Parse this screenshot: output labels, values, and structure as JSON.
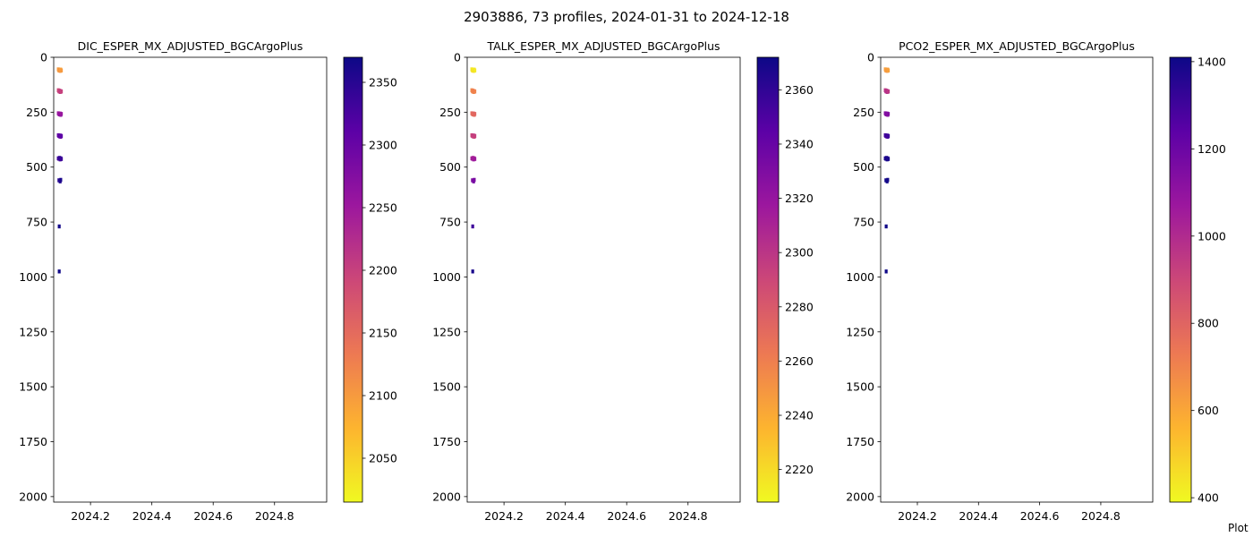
{
  "figure": {
    "title": "2903886, 73 profiles, 2024-01-31 to 2024-12-18",
    "footer": "Plot"
  },
  "colormap": {
    "name": "plasma",
    "stops": [
      "#0d0887",
      "#5c01a6",
      "#9c179e",
      "#cc4778",
      "#ed7953",
      "#fdb42f",
      "#f0f921"
    ]
  },
  "chart_data": [
    {
      "type": "scatter",
      "title": "DIC_ESPER_MX_ADJUSTED_BGCArgoPlus",
      "xlabel": "",
      "ylabel": "",
      "xlim": [
        2024.08,
        2024.97
      ],
      "ylim": [
        2025,
        0
      ],
      "y_inverted": true,
      "xticks": [
        "2024.2",
        "2024.4",
        "2024.6",
        "2024.8"
      ],
      "yticks": [
        "0",
        "250",
        "500",
        "750",
        "1000",
        "1250",
        "1500",
        "1750",
        "2000"
      ],
      "colorbar": {
        "range": [
          2015,
          2370
        ],
        "ticks": [
          "2050",
          "2100",
          "2150",
          "2200",
          "2250",
          "2300",
          "2350"
        ]
      },
      "points": [
        {
          "x": 2024.095,
          "y": 55,
          "c": 2100
        },
        {
          "x": 2024.097,
          "y": 60,
          "c": 2095
        },
        {
          "x": 2024.099,
          "y": 58,
          "c": 2110
        },
        {
          "x": 2024.101,
          "y": 62,
          "c": 2105
        },
        {
          "x": 2024.103,
          "y": 56,
          "c": 2090
        },
        {
          "x": 2024.105,
          "y": 60,
          "c": 2100
        },
        {
          "x": 2024.095,
          "y": 150,
          "c": 2190
        },
        {
          "x": 2024.097,
          "y": 155,
          "c": 2200
        },
        {
          "x": 2024.099,
          "y": 152,
          "c": 2195
        },
        {
          "x": 2024.101,
          "y": 158,
          "c": 2205
        },
        {
          "x": 2024.103,
          "y": 154,
          "c": 2210
        },
        {
          "x": 2024.105,
          "y": 156,
          "c": 2200
        },
        {
          "x": 2024.095,
          "y": 255,
          "c": 2250
        },
        {
          "x": 2024.097,
          "y": 258,
          "c": 2255
        },
        {
          "x": 2024.099,
          "y": 260,
          "c": 2260
        },
        {
          "x": 2024.101,
          "y": 256,
          "c": 2250
        },
        {
          "x": 2024.103,
          "y": 262,
          "c": 2265
        },
        {
          "x": 2024.105,
          "y": 258,
          "c": 2255
        },
        {
          "x": 2024.095,
          "y": 355,
          "c": 2300
        },
        {
          "x": 2024.097,
          "y": 358,
          "c": 2310
        },
        {
          "x": 2024.099,
          "y": 360,
          "c": 2305
        },
        {
          "x": 2024.101,
          "y": 356,
          "c": 2315
        },
        {
          "x": 2024.103,
          "y": 362,
          "c": 2300
        },
        {
          "x": 2024.105,
          "y": 358,
          "c": 2310
        },
        {
          "x": 2024.095,
          "y": 460,
          "c": 2330
        },
        {
          "x": 2024.097,
          "y": 462,
          "c": 2335
        },
        {
          "x": 2024.099,
          "y": 458,
          "c": 2340
        },
        {
          "x": 2024.101,
          "y": 465,
          "c": 2330
        },
        {
          "x": 2024.103,
          "y": 460,
          "c": 2345
        },
        {
          "x": 2024.105,
          "y": 463,
          "c": 2335
        },
        {
          "x": 2024.097,
          "y": 560,
          "c": 2350
        },
        {
          "x": 2024.101,
          "y": 565,
          "c": 2355
        },
        {
          "x": 2024.103,
          "y": 558,
          "c": 2360
        },
        {
          "x": 2024.098,
          "y": 770,
          "c": 2365
        },
        {
          "x": 2024.098,
          "y": 975,
          "c": 2368
        }
      ]
    },
    {
      "type": "scatter",
      "title": "TALK_ESPER_MX_ADJUSTED_BGCArgoPlus",
      "xlabel": "",
      "ylabel": "",
      "xlim": [
        2024.08,
        2024.97
      ],
      "ylim": [
        2025,
        0
      ],
      "y_inverted": true,
      "xticks": [
        "2024.2",
        "2024.4",
        "2024.6",
        "2024.8"
      ],
      "yticks": [
        "0",
        "250",
        "500",
        "750",
        "1000",
        "1250",
        "1500",
        "1750",
        "2000"
      ],
      "colorbar": {
        "range": [
          2208,
          2372
        ],
        "ticks": [
          "2220",
          "2240",
          "2260",
          "2280",
          "2300",
          "2320",
          "2340",
          "2360"
        ]
      },
      "points": [
        {
          "x": 2024.095,
          "y": 55,
          "c": 2215
        },
        {
          "x": 2024.097,
          "y": 60,
          "c": 2218
        },
        {
          "x": 2024.099,
          "y": 58,
          "c": 2212
        },
        {
          "x": 2024.101,
          "y": 62,
          "c": 2220
        },
        {
          "x": 2024.103,
          "y": 56,
          "c": 2216
        },
        {
          "x": 2024.105,
          "y": 60,
          "c": 2214
        },
        {
          "x": 2024.095,
          "y": 150,
          "c": 2255
        },
        {
          "x": 2024.097,
          "y": 155,
          "c": 2258
        },
        {
          "x": 2024.099,
          "y": 152,
          "c": 2260
        },
        {
          "x": 2024.101,
          "y": 158,
          "c": 2256
        },
        {
          "x": 2024.103,
          "y": 154,
          "c": 2262
        },
        {
          "x": 2024.105,
          "y": 156,
          "c": 2258
        },
        {
          "x": 2024.095,
          "y": 255,
          "c": 2270
        },
        {
          "x": 2024.097,
          "y": 258,
          "c": 2272
        },
        {
          "x": 2024.099,
          "y": 260,
          "c": 2268
        },
        {
          "x": 2024.101,
          "y": 256,
          "c": 2275
        },
        {
          "x": 2024.103,
          "y": 262,
          "c": 2270
        },
        {
          "x": 2024.105,
          "y": 258,
          "c": 2273
        },
        {
          "x": 2024.095,
          "y": 355,
          "c": 2290
        },
        {
          "x": 2024.097,
          "y": 358,
          "c": 2295
        },
        {
          "x": 2024.099,
          "y": 360,
          "c": 2292
        },
        {
          "x": 2024.101,
          "y": 356,
          "c": 2298
        },
        {
          "x": 2024.103,
          "y": 362,
          "c": 2290
        },
        {
          "x": 2024.105,
          "y": 358,
          "c": 2294
        },
        {
          "x": 2024.095,
          "y": 460,
          "c": 2310
        },
        {
          "x": 2024.097,
          "y": 462,
          "c": 2315
        },
        {
          "x": 2024.099,
          "y": 458,
          "c": 2312
        },
        {
          "x": 2024.101,
          "y": 465,
          "c": 2318
        },
        {
          "x": 2024.103,
          "y": 460,
          "c": 2310
        },
        {
          "x": 2024.105,
          "y": 463,
          "c": 2316
        },
        {
          "x": 2024.097,
          "y": 560,
          "c": 2330
        },
        {
          "x": 2024.101,
          "y": 565,
          "c": 2335
        },
        {
          "x": 2024.103,
          "y": 558,
          "c": 2332
        },
        {
          "x": 2024.098,
          "y": 770,
          "c": 2355
        },
        {
          "x": 2024.098,
          "y": 975,
          "c": 2368
        }
      ]
    },
    {
      "type": "scatter",
      "title": "PCO2_ESPER_MX_ADJUSTED_BGCArgoPlus",
      "xlabel": "",
      "ylabel": "",
      "xlim": [
        2024.08,
        2024.97
      ],
      "ylim": [
        2025,
        0
      ],
      "y_inverted": true,
      "xticks": [
        "2024.2",
        "2024.4",
        "2024.6",
        "2024.8"
      ],
      "yticks": [
        "0",
        "250",
        "500",
        "750",
        "1000",
        "1250",
        "1500",
        "1750",
        "2000"
      ],
      "colorbar": {
        "range": [
          390,
          1410
        ],
        "ticks": [
          "400",
          "600",
          "800",
          "1000",
          "1200",
          "1400"
        ]
      },
      "points": [
        {
          "x": 2024.095,
          "y": 55,
          "c": 620
        },
        {
          "x": 2024.097,
          "y": 60,
          "c": 640
        },
        {
          "x": 2024.099,
          "y": 58,
          "c": 610
        },
        {
          "x": 2024.101,
          "y": 62,
          "c": 650
        },
        {
          "x": 2024.103,
          "y": 56,
          "c": 630
        },
        {
          "x": 2024.105,
          "y": 60,
          "c": 615
        },
        {
          "x": 2024.095,
          "y": 150,
          "c": 950
        },
        {
          "x": 2024.097,
          "y": 155,
          "c": 980
        },
        {
          "x": 2024.099,
          "y": 152,
          "c": 960
        },
        {
          "x": 2024.101,
          "y": 158,
          "c": 990
        },
        {
          "x": 2024.103,
          "y": 154,
          "c": 970
        },
        {
          "x": 2024.105,
          "y": 156,
          "c": 955
        },
        {
          "x": 2024.095,
          "y": 255,
          "c": 1120
        },
        {
          "x": 2024.097,
          "y": 258,
          "c": 1140
        },
        {
          "x": 2024.099,
          "y": 260,
          "c": 1130
        },
        {
          "x": 2024.101,
          "y": 256,
          "c": 1150
        },
        {
          "x": 2024.103,
          "y": 262,
          "c": 1125
        },
        {
          "x": 2024.105,
          "y": 258,
          "c": 1145
        },
        {
          "x": 2024.095,
          "y": 355,
          "c": 1280
        },
        {
          "x": 2024.097,
          "y": 358,
          "c": 1300
        },
        {
          "x": 2024.099,
          "y": 360,
          "c": 1290
        },
        {
          "x": 2024.101,
          "y": 356,
          "c": 1310
        },
        {
          "x": 2024.103,
          "y": 362,
          "c": 1285
        },
        {
          "x": 2024.105,
          "y": 358,
          "c": 1305
        },
        {
          "x": 2024.095,
          "y": 460,
          "c": 1370
        },
        {
          "x": 2024.097,
          "y": 462,
          "c": 1380
        },
        {
          "x": 2024.099,
          "y": 458,
          "c": 1375
        },
        {
          "x": 2024.101,
          "y": 465,
          "c": 1390
        },
        {
          "x": 2024.103,
          "y": 460,
          "c": 1372
        },
        {
          "x": 2024.105,
          "y": 463,
          "c": 1385
        },
        {
          "x": 2024.097,
          "y": 560,
          "c": 1395
        },
        {
          "x": 2024.101,
          "y": 565,
          "c": 1400
        },
        {
          "x": 2024.103,
          "y": 558,
          "c": 1398
        },
        {
          "x": 2024.098,
          "y": 770,
          "c": 1402
        },
        {
          "x": 2024.098,
          "y": 975,
          "c": 1405
        }
      ]
    }
  ]
}
